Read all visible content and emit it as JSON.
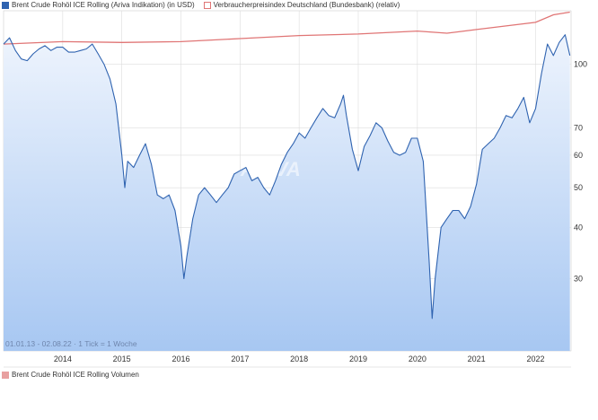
{
  "legend": {
    "series1": "Brent Crude Rohöl ICE Rolling (Ariva Indikation) (in USD)",
    "series2": "Verbraucherpreisindex Deutschland (Bundesbank) (relativ)",
    "volume": "Brent Crude Rohöl ICE Rolling Volumen"
  },
  "footer": "01.01.13 - 02.08.22 · 1 Tick = 1 Woche",
  "watermark": "ARIVA",
  "colors": {
    "brent_line": "#2f63b0",
    "cpi_line": "#e07575",
    "area_top": "#eef4fd",
    "area_bottom": "#a7c7f2",
    "grid": "#dddddd",
    "volume_swatch": "#e8a0a0"
  },
  "chart_data": {
    "type": "line",
    "x_ticks": [
      "2014",
      "2015",
      "2016",
      "2017",
      "2018",
      "2019",
      "2020",
      "2021",
      "2022"
    ],
    "y_ticks": [
      30,
      40,
      50,
      60,
      70,
      100
    ],
    "y_scale": "log",
    "ylim": [
      20,
      135
    ],
    "xlim": [
      2013.0,
      2022.6
    ],
    "grid": true,
    "series": [
      {
        "name": "Brent Crude Rohöl ICE Rolling (Ariva Indikation) (in USD)",
        "style": "area",
        "x": [
          2013.0,
          2013.1,
          2013.2,
          2013.3,
          2013.4,
          2013.5,
          2013.6,
          2013.7,
          2013.8,
          2013.9,
          2014.0,
          2014.1,
          2014.2,
          2014.3,
          2014.4,
          2014.5,
          2014.6,
          2014.7,
          2014.8,
          2014.9,
          2015.0,
          2015.05,
          2015.1,
          2015.2,
          2015.3,
          2015.4,
          2015.5,
          2015.6,
          2015.7,
          2015.8,
          2015.9,
          2016.0,
          2016.05,
          2016.1,
          2016.2,
          2016.3,
          2016.4,
          2016.5,
          2016.6,
          2016.7,
          2016.8,
          2016.9,
          2017.0,
          2017.1,
          2017.2,
          2017.3,
          2017.4,
          2017.5,
          2017.6,
          2017.7,
          2017.8,
          2017.9,
          2018.0,
          2018.1,
          2018.2,
          2018.3,
          2018.4,
          2018.5,
          2018.6,
          2018.7,
          2018.75,
          2018.8,
          2018.9,
          2019.0,
          2019.1,
          2019.2,
          2019.3,
          2019.4,
          2019.5,
          2019.6,
          2019.7,
          2019.8,
          2019.9,
          2020.0,
          2020.1,
          2020.2,
          2020.25,
          2020.3,
          2020.4,
          2020.5,
          2020.6,
          2020.7,
          2020.8,
          2020.9,
          2021.0,
          2021.1,
          2021.2,
          2021.3,
          2021.4,
          2021.5,
          2021.6,
          2021.7,
          2021.8,
          2021.9,
          2022.0,
          2022.1,
          2022.2,
          2022.3,
          2022.4,
          2022.5,
          2022.58
        ],
        "values": [
          112,
          116,
          108,
          103,
          102,
          106,
          109,
          111,
          108,
          110,
          110,
          107,
          107,
          108,
          109,
          112,
          106,
          100,
          92,
          80,
          60,
          50,
          58,
          56,
          60,
          64,
          57,
          48,
          47,
          48,
          44,
          36,
          30,
          34,
          42,
          48,
          50,
          48,
          46,
          48,
          50,
          54,
          55,
          56,
          52,
          53,
          50,
          48,
          52,
          57,
          61,
          64,
          68,
          66,
          70,
          74,
          78,
          75,
          74,
          80,
          84,
          75,
          62,
          55,
          63,
          67,
          72,
          70,
          65,
          61,
          60,
          61,
          66,
          66,
          58,
          33,
          24,
          30,
          40,
          42,
          44,
          44,
          42,
          45,
          51,
          62,
          64,
          66,
          70,
          75,
          74,
          78,
          83,
          72,
          78,
          95,
          112,
          105,
          113,
          118,
          105
        ]
      },
      {
        "name": "Verbraucherpreisindex Deutschland (Bundesbank) (relativ)",
        "style": "line",
        "x": [
          2013.0,
          2014.0,
          2015.0,
          2016.0,
          2017.0,
          2018.0,
          2019.0,
          2020.0,
          2020.5,
          2021.0,
          2021.5,
          2022.0,
          2022.3,
          2022.58
        ],
        "values": [
          112,
          113.5,
          113,
          113.5,
          115.5,
          117.5,
          118.5,
          120.5,
          119,
          121.5,
          124,
          126.5,
          132,
          134
        ]
      }
    ]
  }
}
